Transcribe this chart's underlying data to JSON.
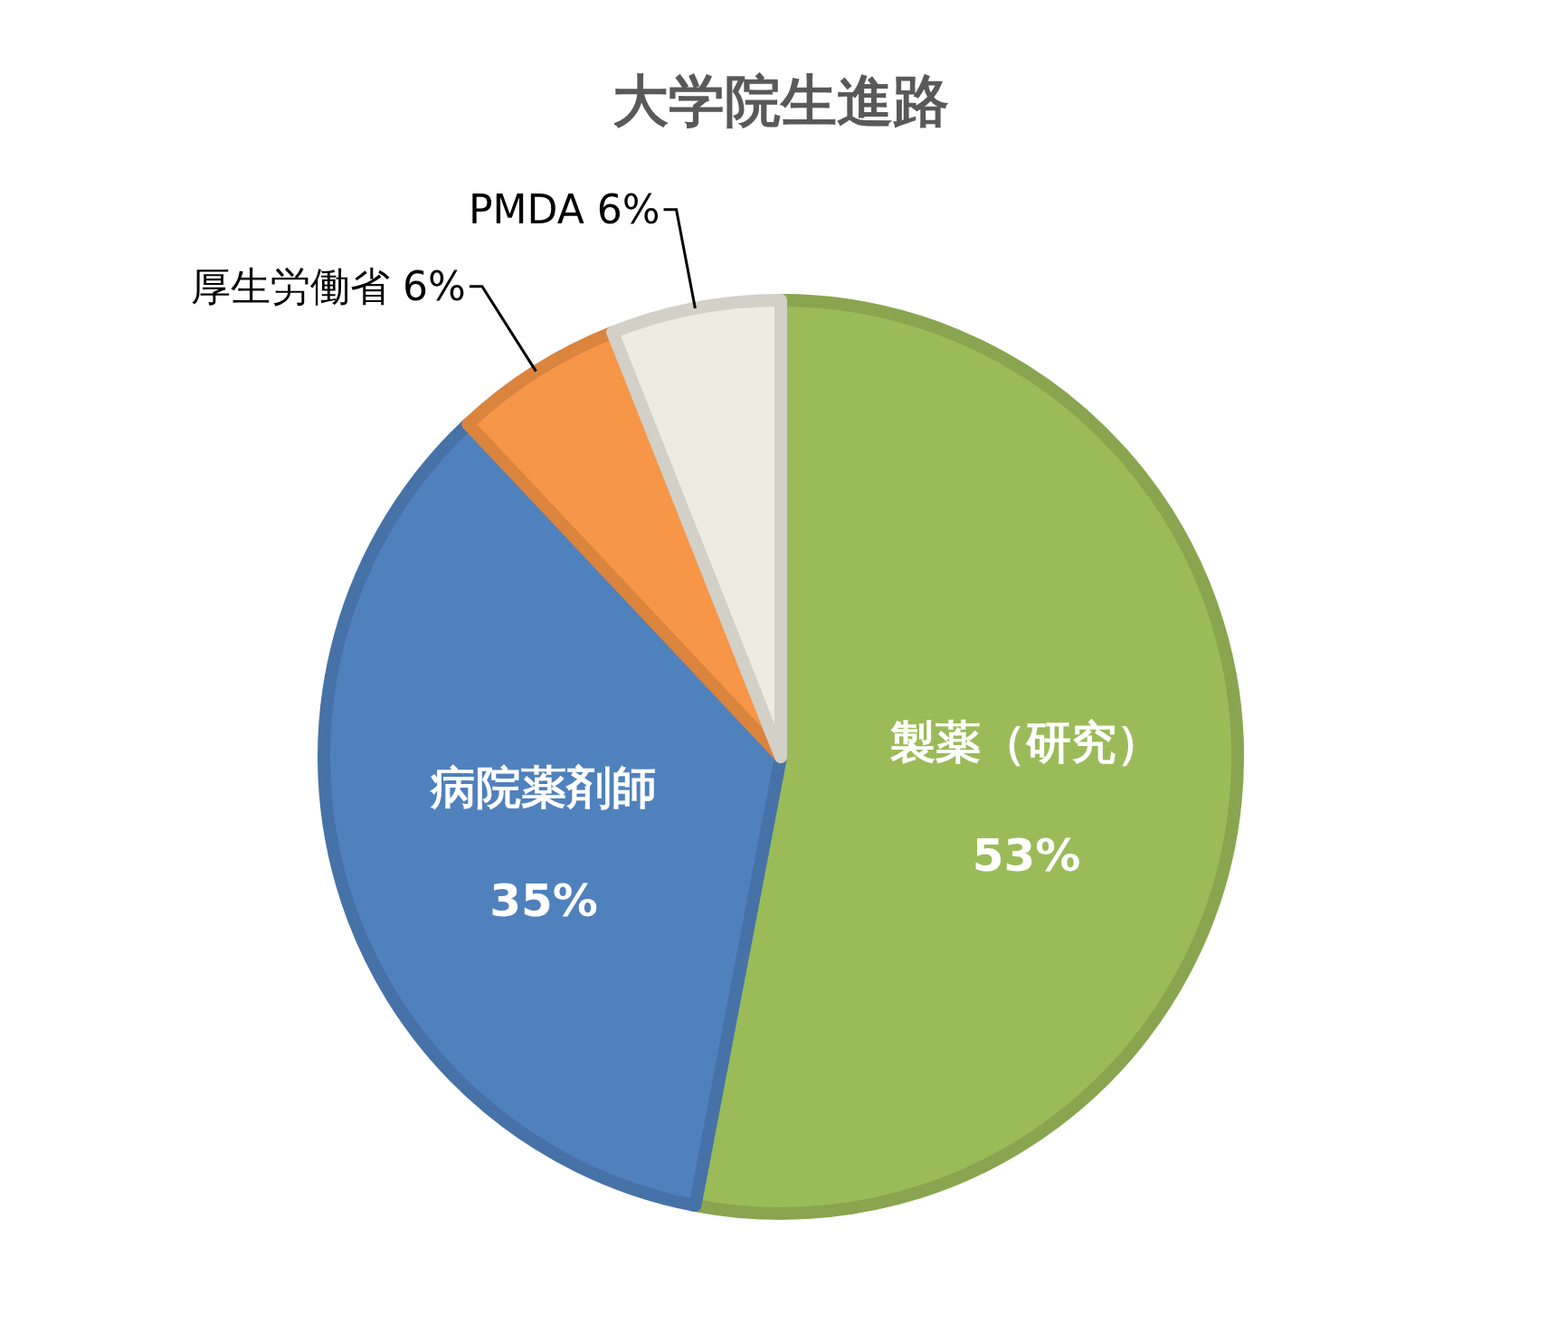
{
  "chart_data": {
    "type": "pie",
    "title": "大学院生進路",
    "categories": [
      "製薬（研究）",
      "病院薬剤師",
      "厚生労働省",
      "PMDA"
    ],
    "values": [
      53,
      35,
      6,
      6
    ],
    "value_labels": [
      "53%",
      "35%",
      "6%",
      "6%"
    ],
    "colors": [
      "#9bbb59",
      "#4f81bd",
      "#f79646",
      "#eeece1"
    ]
  }
}
